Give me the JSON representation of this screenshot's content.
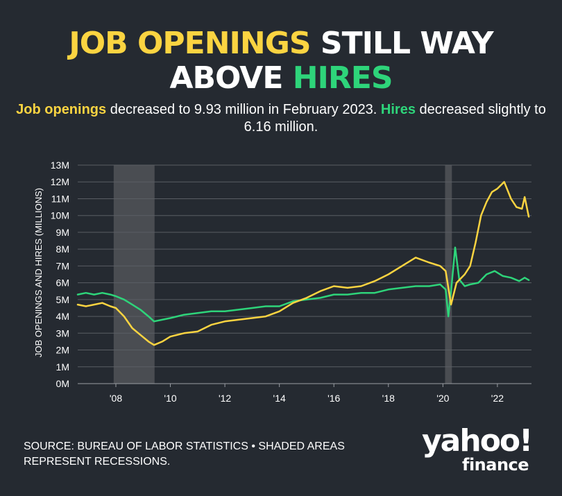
{
  "headline": {
    "part1": "JOB OPENINGS",
    "part2": " STILL WAY",
    "part3": "ABOVE ",
    "part4": "HIRES"
  },
  "subtitle": {
    "key1": "Job openings",
    "text1": " decreased to 9.93 million in February 2023. ",
    "key2": "Hires",
    "text2": " decreased slightly to 6.16 million."
  },
  "source": "SOURCE: BUREAU OF LABOR STATISTICS • SHADED AREAS REPRESENT RECESSIONS.",
  "logo": {
    "brand": "yahoo!",
    "product": "finance"
  },
  "colors": {
    "background": "#252a31",
    "openings": "#fbd441",
    "hires": "#2ed47a",
    "recession": "#4a4d52",
    "grid": "#5a5e64",
    "text": "#ffffff"
  },
  "chart_data": {
    "type": "line",
    "ylabel": "JOB OPENINGS AND HIRES (MILLIONS)",
    "xlim": [
      2006.6,
      2023.25
    ],
    "ylim": [
      0,
      13
    ],
    "y_ticks": [
      {
        "value": 0,
        "label": "0M"
      },
      {
        "value": 1,
        "label": "1M"
      },
      {
        "value": 2,
        "label": "2M"
      },
      {
        "value": 3,
        "label": "3M"
      },
      {
        "value": 4,
        "label": "4M"
      },
      {
        "value": 5,
        "label": "5M"
      },
      {
        "value": 6,
        "label": "6M"
      },
      {
        "value": 7,
        "label": "7M"
      },
      {
        "value": 8,
        "label": "8M"
      },
      {
        "value": 9,
        "label": "9M"
      },
      {
        "value": 10,
        "label": "10M"
      },
      {
        "value": 11,
        "label": "11M"
      },
      {
        "value": 12,
        "label": "12M"
      },
      {
        "value": 13,
        "label": "13M"
      }
    ],
    "x_ticks": [
      {
        "value": 2008,
        "label": "'08"
      },
      {
        "value": 2010,
        "label": "'10"
      },
      {
        "value": 2012,
        "label": "'12"
      },
      {
        "value": 2014,
        "label": "'14"
      },
      {
        "value": 2016,
        "label": "'16"
      },
      {
        "value": 2018,
        "label": "'18"
      },
      {
        "value": 2020,
        "label": "'20"
      },
      {
        "value": 2022,
        "label": "'22"
      }
    ],
    "grid": true,
    "recessions": [
      {
        "start": 2007.92,
        "end": 2009.42
      },
      {
        "start": 2020.08,
        "end": 2020.33
      }
    ],
    "series": [
      {
        "key": "openings",
        "x": [
          2006.6,
          2006.9,
          2007.2,
          2007.5,
          2007.8,
          2008.0,
          2008.3,
          2008.6,
          2008.9,
          2009.2,
          2009.4,
          2009.7,
          2010.0,
          2010.5,
          2011.0,
          2011.5,
          2012.0,
          2012.5,
          2013.0,
          2013.5,
          2014.0,
          2014.5,
          2015.0,
          2015.5,
          2016.0,
          2016.5,
          2017.0,
          2017.5,
          2018.0,
          2018.5,
          2019.0,
          2019.5,
          2019.9,
          2020.1,
          2020.3,
          2020.5,
          2020.8,
          2021.0,
          2021.2,
          2021.4,
          2021.6,
          2021.8,
          2022.0,
          2022.25,
          2022.5,
          2022.7,
          2022.9,
          2023.0,
          2023.15
        ],
        "y": [
          4.7,
          4.6,
          4.7,
          4.8,
          4.6,
          4.5,
          4.0,
          3.3,
          2.9,
          2.5,
          2.3,
          2.5,
          2.8,
          3.0,
          3.1,
          3.5,
          3.7,
          3.8,
          3.9,
          4.0,
          4.3,
          4.8,
          5.1,
          5.5,
          5.8,
          5.7,
          5.8,
          6.1,
          6.5,
          7.0,
          7.5,
          7.2,
          7.0,
          6.7,
          4.7,
          6.0,
          6.5,
          7.0,
          8.4,
          10.0,
          10.8,
          11.4,
          11.6,
          12.0,
          11.0,
          10.5,
          10.4,
          11.1,
          9.93
        ]
      },
      {
        "key": "hires",
        "x": [
          2006.6,
          2006.9,
          2007.2,
          2007.5,
          2007.8,
          2008.0,
          2008.3,
          2008.6,
          2008.9,
          2009.2,
          2009.4,
          2009.7,
          2010.0,
          2010.5,
          2011.0,
          2011.5,
          2012.0,
          2012.5,
          2013.0,
          2013.5,
          2014.0,
          2014.5,
          2015.0,
          2015.5,
          2016.0,
          2016.5,
          2017.0,
          2017.5,
          2018.0,
          2018.5,
          2019.0,
          2019.5,
          2019.9,
          2020.1,
          2020.2,
          2020.3,
          2020.45,
          2020.6,
          2020.8,
          2021.0,
          2021.3,
          2021.6,
          2021.9,
          2022.2,
          2022.5,
          2022.8,
          2023.0,
          2023.15
        ],
        "y": [
          5.3,
          5.4,
          5.3,
          5.4,
          5.3,
          5.2,
          5.0,
          4.7,
          4.4,
          4.0,
          3.7,
          3.8,
          3.9,
          4.1,
          4.2,
          4.3,
          4.3,
          4.4,
          4.5,
          4.6,
          4.6,
          4.9,
          5.0,
          5.1,
          5.3,
          5.3,
          5.4,
          5.4,
          5.6,
          5.7,
          5.8,
          5.8,
          5.9,
          5.6,
          4.0,
          5.5,
          8.1,
          6.2,
          5.8,
          5.9,
          6.0,
          6.5,
          6.7,
          6.4,
          6.3,
          6.1,
          6.3,
          6.16
        ]
      }
    ]
  }
}
